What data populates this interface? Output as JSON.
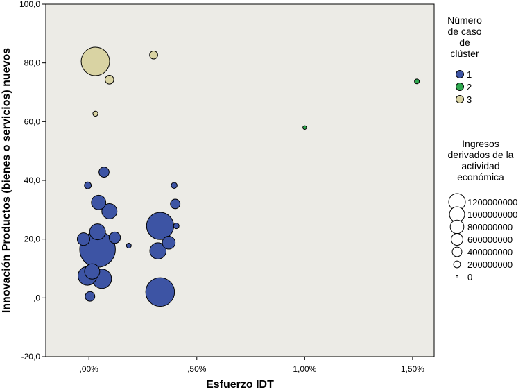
{
  "chart_data": {
    "type": "scatter",
    "xlabel": "Esfuerzo IDT",
    "ylabel": "Innovación Productos (bienes o servicios) nuevos",
    "xlim": [
      -0.2,
      1.6
    ],
    "ylim": [
      -20,
      100
    ],
    "x_ticks": [
      0.0,
      0.5,
      1.0,
      1.5
    ],
    "x_tick_labels": [
      ",00%",
      ",50%",
      "1,00%",
      "1,50%"
    ],
    "y_ticks": [
      -20,
      0,
      20,
      40,
      60,
      80,
      100
    ],
    "y_tick_labels": [
      "-20,0",
      ",0",
      "20,0",
      "40,0",
      "60,0",
      "80,0",
      "100,0"
    ],
    "grid": false,
    "size_max": 1200000000,
    "colors": {
      "1": "#3d54a4",
      "2": "#2fa84f",
      "3": "#d9d3a3",
      "plot_bg": "#ecebe6"
    },
    "color_legend": {
      "title": [
        "Número",
        "de caso",
        "de",
        "clúster"
      ],
      "entries": [
        {
          "label": "1",
          "cluster": "1"
        },
        {
          "label": "2",
          "cluster": "2"
        },
        {
          "label": "3",
          "cluster": "3"
        }
      ]
    },
    "size_legend": {
      "title": [
        "Ingresos",
        "derivados de la",
        "actividad",
        "económica"
      ],
      "entries": [
        {
          "label": "1200000000",
          "value": 1200000000
        },
        {
          "label": "1000000000",
          "value": 1000000000
        },
        {
          "label": "800000000",
          "value": 800000000
        },
        {
          "label": "600000000",
          "value": 600000000
        },
        {
          "label": "400000000",
          "value": 400000000
        },
        {
          "label": "200000000",
          "value": 200000000
        },
        {
          "label": "0",
          "value": 0
        }
      ]
    },
    "series": [
      {
        "name": "1",
        "points": [
          {
            "x": -0.007,
            "y": 7.5,
            "size": 1520000000
          },
          {
            "x": 0.005,
            "y": 0.5,
            "size": 400000000
          },
          {
            "x": 0.04,
            "y": 16.5,
            "size": 5500000000
          },
          {
            "x": -0.025,
            "y": 20,
            "size": 680000000
          },
          {
            "x": 0.015,
            "y": 9,
            "size": 1000000000
          },
          {
            "x": 0.06,
            "y": 6.5,
            "size": 1620000000
          },
          {
            "x": 0.04,
            "y": 22.5,
            "size": 1100000000
          },
          {
            "x": 0.12,
            "y": 20.5,
            "size": 560000000
          },
          {
            "x": 0.185,
            "y": 17.8,
            "size": 100000000
          },
          {
            "x": 0.045,
            "y": 32.5,
            "size": 900000000
          },
          {
            "x": -0.005,
            "y": 38.3,
            "size": 200000000
          },
          {
            "x": 0.095,
            "y": 29.5,
            "size": 1000000000
          },
          {
            "x": 0.07,
            "y": 42.8,
            "size": 450000000
          },
          {
            "x": 0.33,
            "y": 24.5,
            "size": 3200000000
          },
          {
            "x": 0.33,
            "y": 2,
            "size": 3600000000
          },
          {
            "x": 0.37,
            "y": 18.8,
            "size": 720000000
          },
          {
            "x": 0.32,
            "y": 16,
            "size": 1150000000
          },
          {
            "x": 0.4,
            "y": 32,
            "size": 400000000
          },
          {
            "x": 0.395,
            "y": 38.3,
            "size": 150000000
          },
          {
            "x": 0.405,
            "y": 24.5,
            "size": 130000000
          }
        ]
      },
      {
        "name": "2",
        "points": [
          {
            "x": 1.0,
            "y": 58,
            "size": 60000000
          },
          {
            "x": 1.52,
            "y": 73.7,
            "size": 100000000
          }
        ]
      },
      {
        "name": "3",
        "points": [
          {
            "x": 0.03,
            "y": 80.5,
            "size": 3500000000
          },
          {
            "x": 0.095,
            "y": 74.3,
            "size": 330000000
          },
          {
            "x": 0.03,
            "y": 62.7,
            "size": 110000000
          },
          {
            "x": 0.3,
            "y": 82.7,
            "size": 280000000
          }
        ]
      }
    ]
  }
}
